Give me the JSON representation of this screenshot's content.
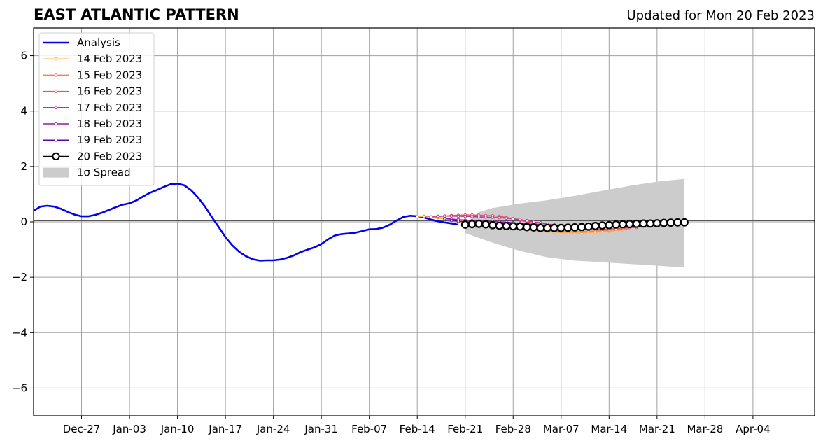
{
  "chart_data": {
    "type": "line",
    "title": "EAST ATLANTIC PATTERN",
    "subtitle": "Updated for Mon 20 Feb 2023",
    "xlabel": "",
    "ylabel": "",
    "x_range": [
      "2022-12-20",
      "2023-04-13"
    ],
    "ylim": [
      -7,
      7
    ],
    "y_ticks": [
      -6,
      -4,
      -2,
      0,
      2,
      4,
      6
    ],
    "y_tick_labels": [
      "−6",
      "−4",
      "−2",
      "0",
      "2",
      "4",
      "6"
    ],
    "x_ticks": [
      {
        "date": "2022-12-27",
        "label": "Dec-27"
      },
      {
        "date": "2023-01-03",
        "label": "Jan-03"
      },
      {
        "date": "2023-01-10",
        "label": "Jan-10"
      },
      {
        "date": "2023-01-17",
        "label": "Jan-17"
      },
      {
        "date": "2023-01-24",
        "label": "Jan-24"
      },
      {
        "date": "2023-01-31",
        "label": "Jan-31"
      },
      {
        "date": "2023-02-07",
        "label": "Feb-07"
      },
      {
        "date": "2023-02-14",
        "label": "Feb-14"
      },
      {
        "date": "2023-02-21",
        "label": "Feb-21"
      },
      {
        "date": "2023-02-28",
        "label": "Feb-28"
      },
      {
        "date": "2023-03-07",
        "label": "Mar-07"
      },
      {
        "date": "2023-03-14",
        "label": "Mar-14"
      },
      {
        "date": "2023-03-21",
        "label": "Mar-21"
      },
      {
        "date": "2023-03-28",
        "label": "Mar-28"
      },
      {
        "date": "2023-04-04",
        "label": "Apr-04"
      }
    ],
    "grid": true,
    "legend_position": "top-left",
    "legend": [
      {
        "label": "Analysis",
        "color": "#0000ee",
        "kind": "line"
      },
      {
        "label": "14 Feb 2023",
        "color": "#fdb042",
        "kind": "marker-line"
      },
      {
        "label": "15 Feb 2023",
        "color": "#f3814f",
        "kind": "marker-line"
      },
      {
        "label": "16 Feb 2023",
        "color": "#de5765",
        "kind": "marker-line"
      },
      {
        "label": "17 Feb 2023",
        "color": "#bd3786",
        "kind": "marker-line"
      },
      {
        "label": "18 Feb 2023",
        "color": "#8e1ba2",
        "kind": "marker-line"
      },
      {
        "label": "19 Feb 2023",
        "color": "#5a0ba0",
        "kind": "marker-line"
      },
      {
        "label": "20 Feb 2023",
        "color": "#000000",
        "kind": "open-circle"
      },
      {
        "label": "1σ Spread",
        "color": "#cccccc",
        "kind": "patch"
      }
    ],
    "series": [
      {
        "name": "Analysis",
        "color": "#0000ee",
        "points": [
          [
            "2022-12-20",
            0.4
          ],
          [
            "2022-12-21",
            0.55
          ],
          [
            "2022-12-22",
            0.58
          ],
          [
            "2022-12-23",
            0.55
          ],
          [
            "2022-12-24",
            0.47
          ],
          [
            "2022-12-25",
            0.36
          ],
          [
            "2022-12-26",
            0.26
          ],
          [
            "2022-12-27",
            0.2
          ],
          [
            "2022-12-28",
            0.2
          ],
          [
            "2022-12-29",
            0.25
          ],
          [
            "2022-12-30",
            0.33
          ],
          [
            "2022-12-31",
            0.43
          ],
          [
            "2023-01-01",
            0.53
          ],
          [
            "2023-01-02",
            0.62
          ],
          [
            "2023-01-03",
            0.67
          ],
          [
            "2023-01-04",
            0.77
          ],
          [
            "2023-01-05",
            0.92
          ],
          [
            "2023-01-06",
            1.05
          ],
          [
            "2023-01-07",
            1.15
          ],
          [
            "2023-01-08",
            1.26
          ],
          [
            "2023-01-09",
            1.36
          ],
          [
            "2023-01-10",
            1.38
          ],
          [
            "2023-01-11",
            1.32
          ],
          [
            "2023-01-12",
            1.14
          ],
          [
            "2023-01-13",
            0.88
          ],
          [
            "2023-01-14",
            0.56
          ],
          [
            "2023-01-15",
            0.18
          ],
          [
            "2023-01-16",
            -0.18
          ],
          [
            "2023-01-17",
            -0.55
          ],
          [
            "2023-01-18",
            -0.85
          ],
          [
            "2023-01-19",
            -1.08
          ],
          [
            "2023-01-20",
            -1.24
          ],
          [
            "2023-01-21",
            -1.35
          ],
          [
            "2023-01-22",
            -1.4
          ],
          [
            "2023-01-23",
            -1.39
          ],
          [
            "2023-01-24",
            -1.39
          ],
          [
            "2023-01-25",
            -1.36
          ],
          [
            "2023-01-26",
            -1.3
          ],
          [
            "2023-01-27",
            -1.21
          ],
          [
            "2023-01-28",
            -1.09
          ],
          [
            "2023-01-29",
            -1.0
          ],
          [
            "2023-01-30",
            -0.92
          ],
          [
            "2023-01-31",
            -0.8
          ],
          [
            "2023-02-01",
            -0.63
          ],
          [
            "2023-02-02",
            -0.49
          ],
          [
            "2023-02-03",
            -0.44
          ],
          [
            "2023-02-04",
            -0.42
          ],
          [
            "2023-02-05",
            -0.39
          ],
          [
            "2023-02-06",
            -0.33
          ],
          [
            "2023-02-07",
            -0.27
          ],
          [
            "2023-02-08",
            -0.26
          ],
          [
            "2023-02-09",
            -0.21
          ],
          [
            "2023-02-10",
            -0.1
          ],
          [
            "2023-02-11",
            0.05
          ],
          [
            "2023-02-12",
            0.18
          ],
          [
            "2023-02-13",
            0.22
          ],
          [
            "2023-02-14",
            0.2
          ],
          [
            "2023-02-15",
            0.16
          ],
          [
            "2023-02-16",
            0.08
          ],
          [
            "2023-02-17",
            0.02
          ],
          [
            "2023-02-18",
            -0.02
          ],
          [
            "2023-02-19",
            -0.06
          ],
          [
            "2023-02-20",
            -0.1
          ]
        ]
      },
      {
        "name": "14 Feb 2023",
        "color": "#fdb042",
        "start": "2023-02-14",
        "values": [
          0.18,
          0.2,
          0.18,
          0.14,
          0.1,
          0.06,
          0.02,
          -0.02,
          -0.05,
          -0.07,
          -0.1,
          -0.13,
          -0.16,
          -0.2,
          -0.23,
          -0.26,
          -0.28,
          -0.3,
          -0.32,
          -0.35,
          -0.37,
          -0.39,
          -0.4,
          -0.4,
          -0.4,
          -0.39,
          -0.38,
          -0.36,
          -0.34,
          -0.32,
          -0.3
        ]
      },
      {
        "name": "15 Feb 2023",
        "color": "#f3814f",
        "start": "2023-02-15",
        "values": [
          0.2,
          0.18,
          0.16,
          0.13,
          0.1,
          0.06,
          0.03,
          0.0,
          -0.03,
          -0.06,
          -0.09,
          -0.12,
          -0.15,
          -0.18,
          -0.21,
          -0.24,
          -0.27,
          -0.29,
          -0.31,
          -0.33,
          -0.35,
          -0.36,
          -0.36,
          -0.35,
          -0.34,
          -0.33,
          -0.32,
          -0.3,
          -0.28,
          -0.26,
          -0.25
        ]
      },
      {
        "name": "16 Feb 2023",
        "color": "#de5765",
        "start": "2023-02-16",
        "values": [
          0.18,
          0.2,
          0.21,
          0.23,
          0.24,
          0.25,
          0.25,
          0.24,
          0.23,
          0.22,
          0.2,
          0.16,
          0.11,
          0.06,
          0.0,
          -0.05,
          -0.1,
          -0.15,
          -0.19,
          -0.22,
          -0.24,
          -0.26,
          -0.27,
          -0.28,
          -0.28,
          -0.27,
          -0.26,
          -0.25,
          -0.23,
          -0.21,
          -0.2
        ]
      },
      {
        "name": "17 Feb 2023",
        "color": "#bd3786",
        "start": "2023-02-17",
        "values": [
          0.2,
          0.21,
          0.21,
          0.2,
          0.2,
          0.19,
          0.18,
          0.17,
          0.16,
          0.15,
          0.13,
          0.11,
          0.08,
          0.04,
          0.0,
          -0.04,
          -0.08,
          -0.11,
          -0.13,
          -0.14
        ]
      },
      {
        "name": "18 Feb 2023",
        "color": "#8e1ba2",
        "start": "2023-02-18",
        "values": [
          0.12,
          0.1,
          0.08,
          0.06,
          0.04,
          0.03,
          0.02,
          0.01,
          0.0,
          -0.01,
          -0.03,
          -0.05,
          -0.07,
          -0.09,
          -0.11,
          -0.13,
          -0.15
        ]
      },
      {
        "name": "19 Feb 2023",
        "color": "#5a0ba0",
        "start": "2023-02-19",
        "values": [
          0.05,
          0.02,
          0.0,
          -0.02,
          -0.03,
          -0.04,
          -0.05,
          -0.06,
          -0.07,
          -0.08,
          -0.09,
          -0.1,
          -0.11,
          -0.12,
          -0.13,
          -0.14
        ]
      },
      {
        "name": "20 Feb 2023",
        "color": "#000000",
        "start": "2023-02-21",
        "values": [
          -0.1,
          -0.08,
          -0.07,
          -0.09,
          -0.12,
          -0.14,
          -0.15,
          -0.16,
          -0.17,
          -0.19,
          -0.2,
          -0.22,
          -0.22,
          -0.22,
          -0.22,
          -0.21,
          -0.2,
          -0.19,
          -0.17,
          -0.15,
          -0.13,
          -0.12,
          -0.1,
          -0.09,
          -0.08,
          -0.07,
          -0.06,
          -0.06,
          -0.05,
          -0.04,
          -0.03,
          -0.02,
          -0.02
        ]
      }
    ],
    "spread": {
      "label": "1σ Spread",
      "color": "#cccccc",
      "dates": [
        "2023-02-21",
        "2023-02-23",
        "2023-02-25",
        "2023-02-27",
        "2023-03-01",
        "2023-03-05",
        "2023-03-09",
        "2023-03-13",
        "2023-03-17",
        "2023-03-21",
        "2023-03-25"
      ],
      "upper": [
        -0.05,
        0.35,
        0.5,
        0.58,
        0.66,
        0.78,
        0.94,
        1.12,
        1.3,
        1.45,
        1.55
      ],
      "lower": [
        -0.4,
        -0.58,
        -0.75,
        -0.9,
        -1.05,
        -1.28,
        -1.4,
        -1.46,
        -1.52,
        -1.58,
        -1.65
      ]
    }
  }
}
